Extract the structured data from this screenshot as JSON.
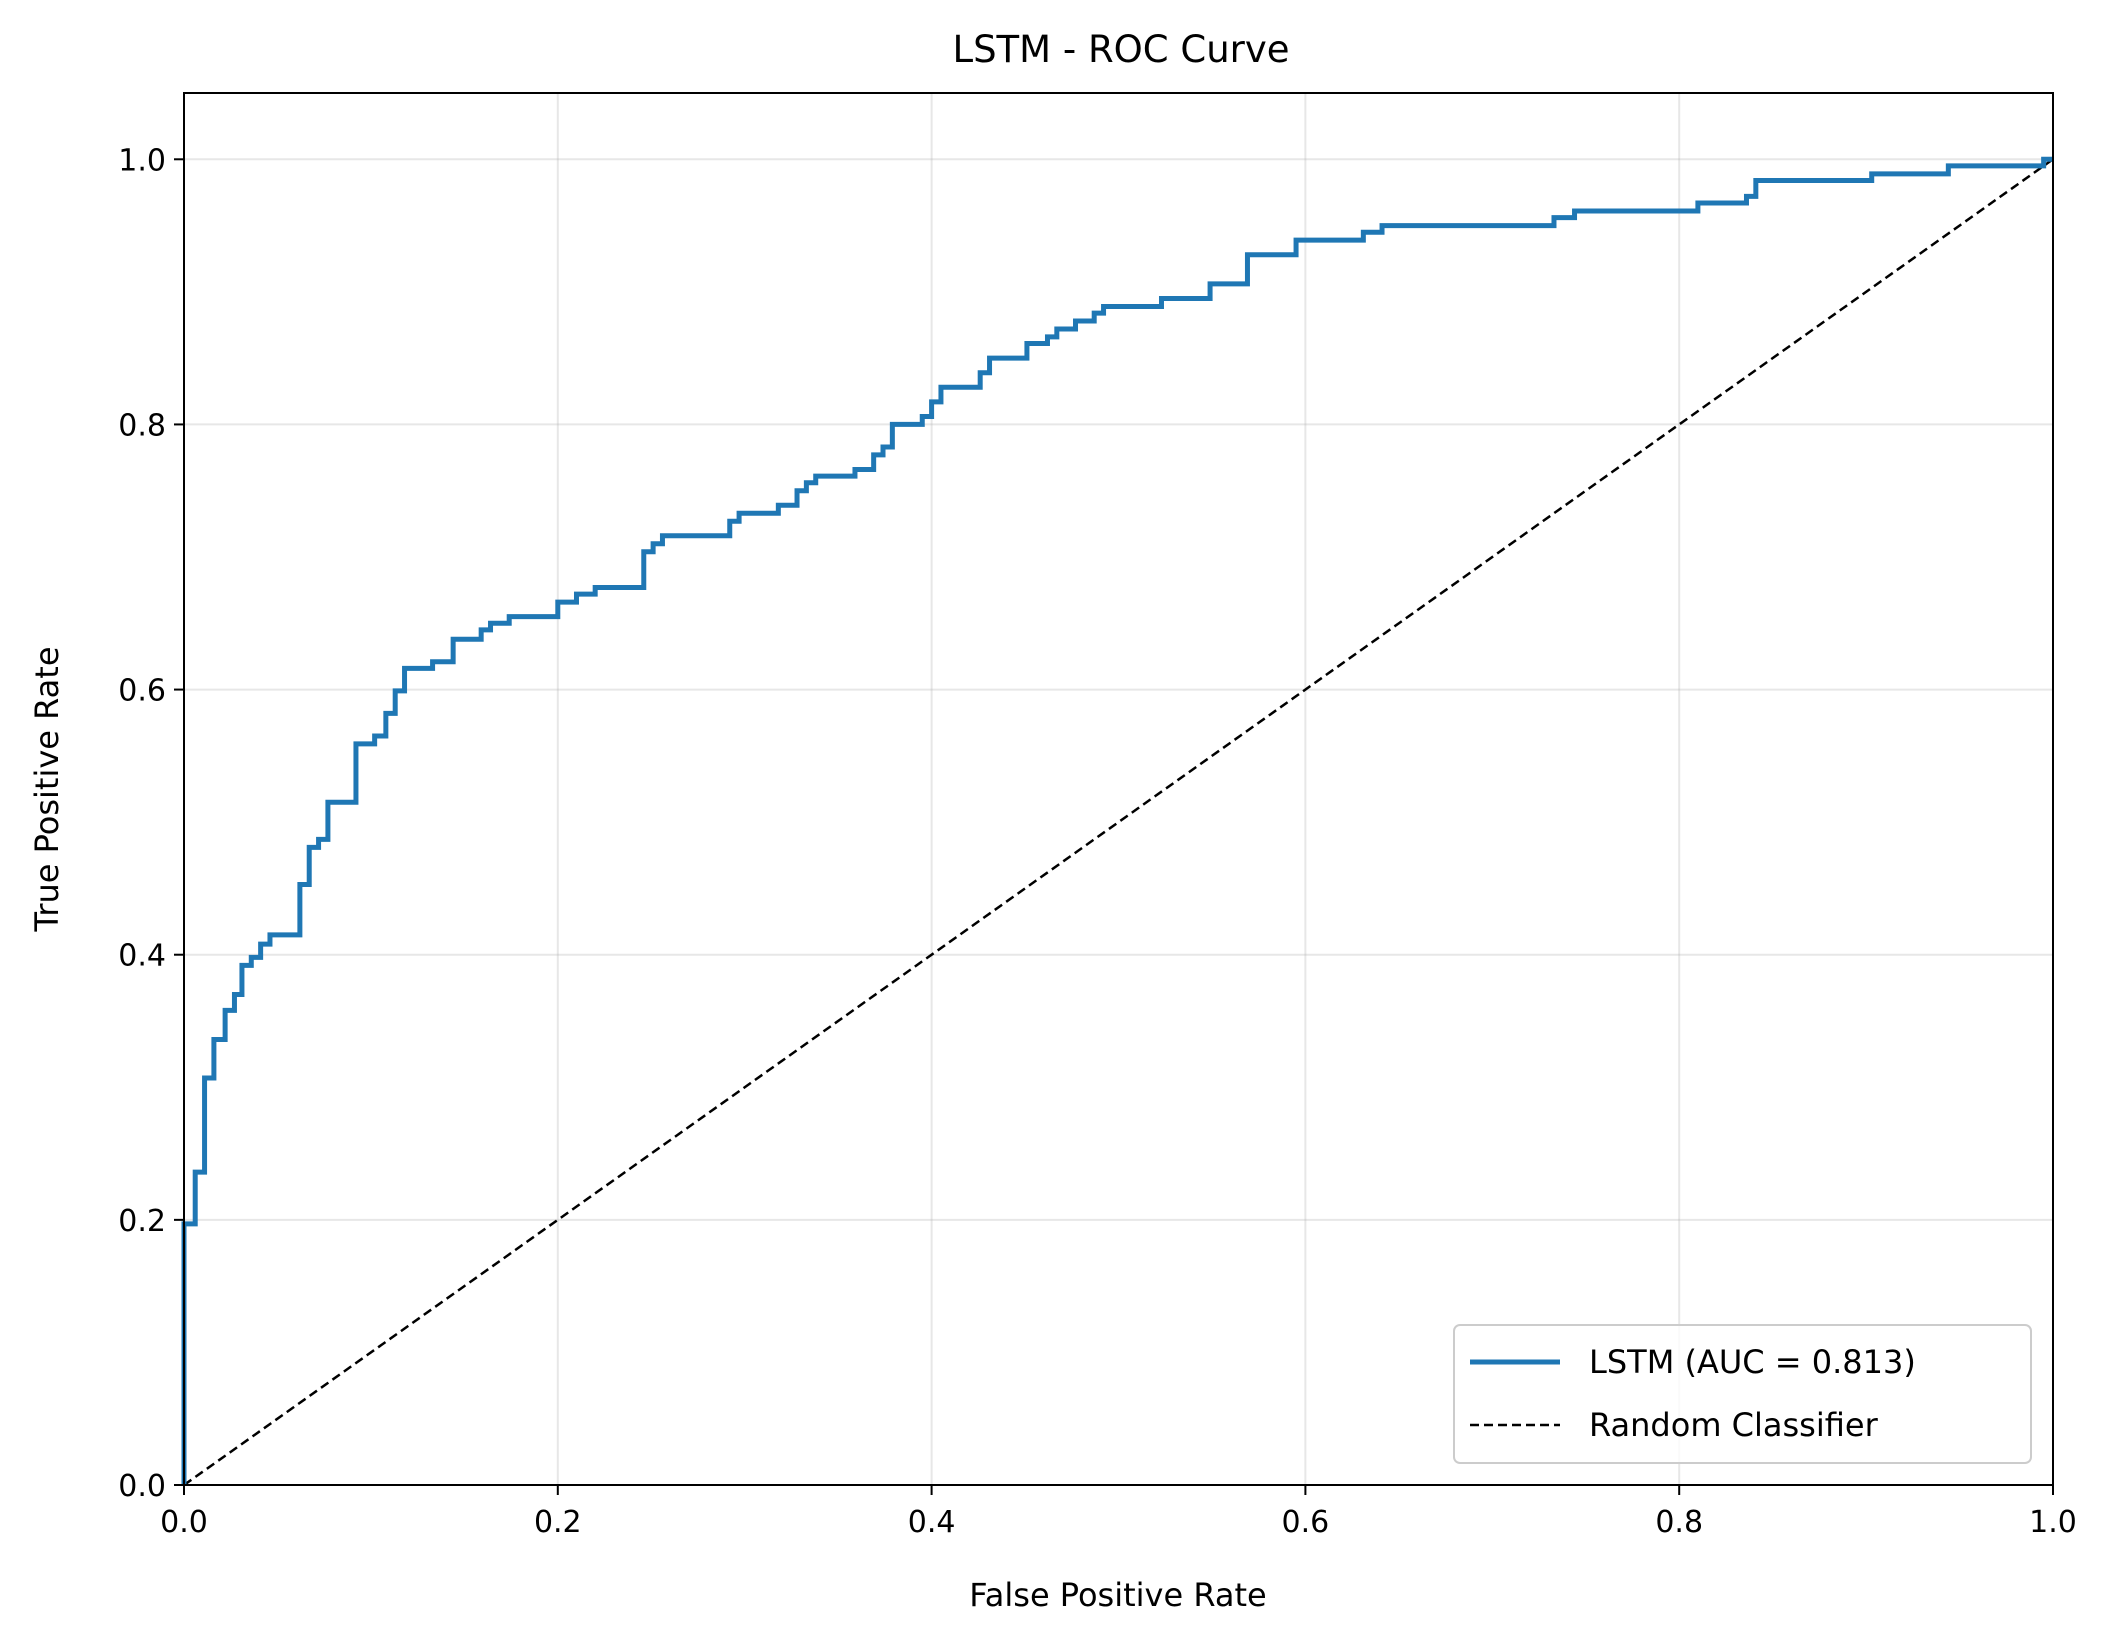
{
  "chart_data": {
    "type": "line",
    "title": "LSTM - ROC Curve",
    "xlabel": "False Positive Rate",
    "ylabel": "True Positive Rate",
    "xlim": [
      0.0,
      1.0
    ],
    "ylim": [
      0.0,
      1.05
    ],
    "xticks": [
      0.0,
      0.2,
      0.4,
      0.6,
      0.8,
      1.0
    ],
    "yticks": [
      0.0,
      0.2,
      0.4,
      0.6,
      0.8,
      1.0
    ],
    "xtick_labels": [
      "0.0",
      "0.2",
      "0.4",
      "0.6",
      "0.8",
      "1.0"
    ],
    "ytick_labels": [
      "0.0",
      "0.2",
      "0.4",
      "0.6",
      "0.8",
      "1.0"
    ],
    "grid": true,
    "legend_position": "lower-right",
    "series": [
      {
        "name": "LSTM (AUC = 0.813)",
        "color": "#1f77b4",
        "style": "solid",
        "points": [
          [
            0.0,
            0.0
          ],
          [
            0.0,
            0.197
          ],
          [
            0.006,
            0.197
          ],
          [
            0.006,
            0.236
          ],
          [
            0.011,
            0.236
          ],
          [
            0.011,
            0.307
          ],
          [
            0.016,
            0.307
          ],
          [
            0.016,
            0.336
          ],
          [
            0.022,
            0.336
          ],
          [
            0.022,
            0.358
          ],
          [
            0.027,
            0.358
          ],
          [
            0.027,
            0.37
          ],
          [
            0.031,
            0.37
          ],
          [
            0.031,
            0.392
          ],
          [
            0.036,
            0.392
          ],
          [
            0.036,
            0.398
          ],
          [
            0.041,
            0.398
          ],
          [
            0.041,
            0.408
          ],
          [
            0.046,
            0.408
          ],
          [
            0.046,
            0.415
          ],
          [
            0.062,
            0.415
          ],
          [
            0.062,
            0.453
          ],
          [
            0.067,
            0.453
          ],
          [
            0.067,
            0.481
          ],
          [
            0.072,
            0.481
          ],
          [
            0.072,
            0.487
          ],
          [
            0.077,
            0.487
          ],
          [
            0.077,
            0.515
          ],
          [
            0.092,
            0.515
          ],
          [
            0.092,
            0.559
          ],
          [
            0.102,
            0.559
          ],
          [
            0.102,
            0.565
          ],
          [
            0.108,
            0.565
          ],
          [
            0.108,
            0.582
          ],
          [
            0.113,
            0.582
          ],
          [
            0.113,
            0.599
          ],
          [
            0.118,
            0.599
          ],
          [
            0.118,
            0.616
          ],
          [
            0.133,
            0.616
          ],
          [
            0.133,
            0.621
          ],
          [
            0.144,
            0.621
          ],
          [
            0.144,
            0.638
          ],
          [
            0.159,
            0.638
          ],
          [
            0.159,
            0.645
          ],
          [
            0.164,
            0.645
          ],
          [
            0.164,
            0.65
          ],
          [
            0.174,
            0.65
          ],
          [
            0.174,
            0.655
          ],
          [
            0.2,
            0.655
          ],
          [
            0.2,
            0.666
          ],
          [
            0.21,
            0.666
          ],
          [
            0.21,
            0.672
          ],
          [
            0.22,
            0.672
          ],
          [
            0.22,
            0.677
          ],
          [
            0.246,
            0.677
          ],
          [
            0.246,
            0.704
          ],
          [
            0.251,
            0.704
          ],
          [
            0.251,
            0.71
          ],
          [
            0.256,
            0.71
          ],
          [
            0.256,
            0.716
          ],
          [
            0.292,
            0.716
          ],
          [
            0.292,
            0.727
          ],
          [
            0.297,
            0.727
          ],
          [
            0.297,
            0.733
          ],
          [
            0.318,
            0.733
          ],
          [
            0.318,
            0.739
          ],
          [
            0.328,
            0.739
          ],
          [
            0.328,
            0.75
          ],
          [
            0.333,
            0.75
          ],
          [
            0.333,
            0.756
          ],
          [
            0.338,
            0.756
          ],
          [
            0.338,
            0.761
          ],
          [
            0.359,
            0.761
          ],
          [
            0.359,
            0.766
          ],
          [
            0.369,
            0.766
          ],
          [
            0.369,
            0.777
          ],
          [
            0.374,
            0.777
          ],
          [
            0.374,
            0.783
          ],
          [
            0.379,
            0.783
          ],
          [
            0.379,
            0.8
          ],
          [
            0.395,
            0.8
          ],
          [
            0.395,
            0.806
          ],
          [
            0.4,
            0.806
          ],
          [
            0.4,
            0.817
          ],
          [
            0.405,
            0.817
          ],
          [
            0.405,
            0.828
          ],
          [
            0.426,
            0.828
          ],
          [
            0.426,
            0.839
          ],
          [
            0.431,
            0.839
          ],
          [
            0.431,
            0.85
          ],
          [
            0.451,
            0.85
          ],
          [
            0.451,
            0.861
          ],
          [
            0.462,
            0.861
          ],
          [
            0.462,
            0.866
          ],
          [
            0.467,
            0.866
          ],
          [
            0.467,
            0.872
          ],
          [
            0.477,
            0.872
          ],
          [
            0.477,
            0.878
          ],
          [
            0.487,
            0.878
          ],
          [
            0.487,
            0.884
          ],
          [
            0.492,
            0.884
          ],
          [
            0.492,
            0.889
          ],
          [
            0.523,
            0.889
          ],
          [
            0.523,
            0.895
          ],
          [
            0.549,
            0.895
          ],
          [
            0.549,
            0.906
          ],
          [
            0.569,
            0.906
          ],
          [
            0.569,
            0.928
          ],
          [
            0.595,
            0.928
          ],
          [
            0.595,
            0.939
          ],
          [
            0.631,
            0.939
          ],
          [
            0.631,
            0.945
          ],
          [
            0.641,
            0.945
          ],
          [
            0.641,
            0.95
          ],
          [
            0.733,
            0.95
          ],
          [
            0.733,
            0.956
          ],
          [
            0.744,
            0.956
          ],
          [
            0.744,
            0.961
          ],
          [
            0.81,
            0.961
          ],
          [
            0.81,
            0.967
          ],
          [
            0.836,
            0.967
          ],
          [
            0.836,
            0.972
          ],
          [
            0.841,
            0.972
          ],
          [
            0.841,
            0.984
          ],
          [
            0.903,
            0.984
          ],
          [
            0.903,
            0.989
          ],
          [
            0.944,
            0.989
          ],
          [
            0.944,
            0.995
          ],
          [
            0.995,
            0.995
          ],
          [
            0.995,
            1.0
          ],
          [
            1.0,
            1.0
          ]
        ]
      },
      {
        "name": "Random Classifier",
        "color": "#000000",
        "style": "dashed",
        "points": [
          [
            0.0,
            0.0
          ],
          [
            1.0,
            1.0
          ]
        ]
      }
    ]
  }
}
